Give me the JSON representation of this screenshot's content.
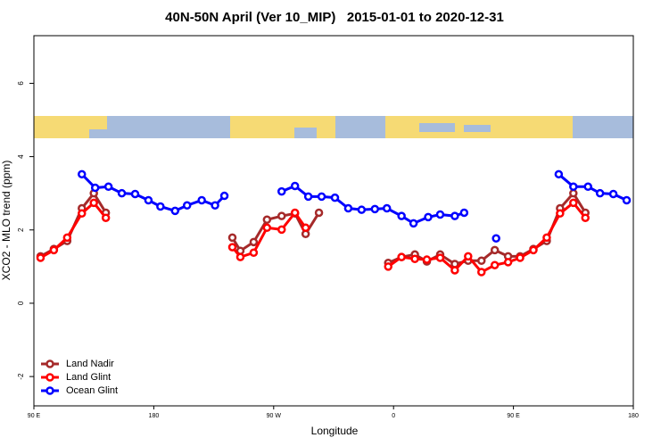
{
  "chart_data": {
    "type": "line",
    "title": "40N-50N April (Ver 10_MIP)   2015-01-01 to 2020-12-31",
    "x_label": "Longitude",
    "y_label": "XCO2 - MLO trend (ppm)",
    "xlim": [
      90,
      540
    ],
    "ylim": [
      -2.8,
      7.3
    ],
    "xticks": [
      {
        "value": 90,
        "label": "90 E"
      },
      180,
      {
        "value": 270,
        "label": "90 W"
      },
      {
        "value": 360,
        "label": "0"
      },
      {
        "value": 450,
        "label": "90 E"
      },
      {
        "value": 540,
        "label": "180"
      }
    ],
    "yticks": [
      -2,
      0,
      2,
      4,
      6
    ],
    "legend": "bottom-left",
    "series": [
      {
        "name": "Land Nadir",
        "color": "#a52a2a",
        "x": [
          95,
          105,
          115,
          126,
          135,
          144,
          null,
          239,
          245,
          255,
          265,
          276,
          286,
          294,
          304,
          null,
          356,
          366,
          376,
          385,
          395,
          406,
          416,
          426,
          436,
          446,
          455,
          465,
          475,
          485,
          495,
          504
        ],
        "values": [
          1.28,
          1.48,
          1.7,
          2.59,
          3.0,
          2.47,
          null,
          1.79,
          1.43,
          1.67,
          2.28,
          2.38,
          2.45,
          1.89,
          2.47,
          null,
          1.1,
          1.26,
          1.33,
          1.14,
          1.33,
          1.07,
          1.16,
          1.16,
          1.45,
          1.28,
          1.28,
          1.48,
          1.7,
          2.59,
          3.0,
          2.47
        ]
      },
      {
        "name": "Land Glint",
        "color": "#ff0000",
        "x": [
          95,
          105,
          115,
          126,
          135,
          144,
          null,
          239,
          245,
          255,
          265,
          276,
          286,
          294,
          null,
          356,
          366,
          376,
          385,
          395,
          406,
          416,
          426,
          436,
          446,
          455,
          465,
          475,
          485,
          495,
          504
        ],
        "values": [
          1.24,
          1.45,
          1.79,
          2.45,
          2.74,
          2.33,
          null,
          1.53,
          1.26,
          1.38,
          2.06,
          2.01,
          2.47,
          2.06,
          null,
          1.0,
          1.26,
          1.21,
          1.19,
          1.24,
          0.9,
          1.28,
          0.85,
          1.04,
          1.12,
          1.24,
          1.45,
          1.79,
          2.45,
          2.74,
          2.33
        ]
      },
      {
        "name": "Ocean Glint",
        "color": "#0000ff",
        "x": [
          126,
          136,
          146,
          156,
          166,
          176,
          185,
          196,
          205,
          216,
          226,
          233,
          null,
          276,
          286,
          296,
          306,
          316,
          326,
          336,
          346,
          355,
          366,
          375,
          386,
          395,
          406,
          413,
          null,
          437,
          null,
          484,
          495,
          506,
          515,
          525,
          535
        ],
        "values": [
          3.52,
          3.15,
          3.18,
          3.0,
          2.98,
          2.81,
          2.64,
          2.52,
          2.67,
          2.81,
          2.67,
          2.93,
          null,
          3.05,
          3.2,
          2.91,
          2.91,
          2.88,
          2.59,
          2.55,
          2.57,
          2.59,
          2.38,
          2.18,
          2.35,
          2.42,
          2.38,
          2.47,
          null,
          1.77,
          null,
          3.52,
          3.18,
          3.18,
          3.0,
          2.98,
          2.81
        ]
      }
    ]
  }
}
